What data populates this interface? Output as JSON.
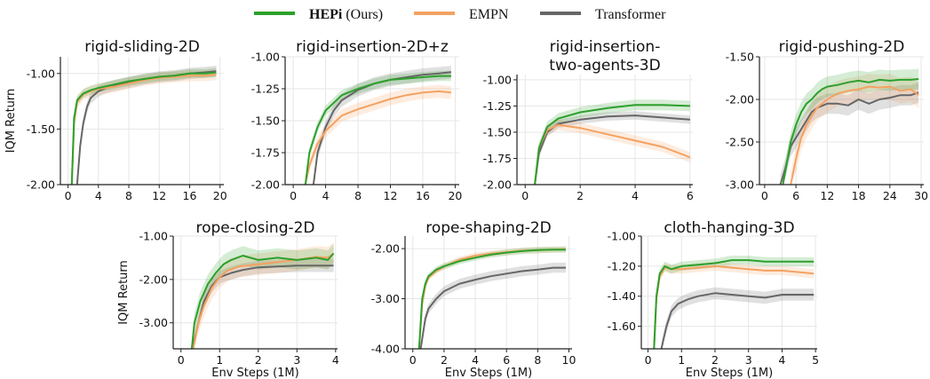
{
  "legend": {
    "items": [
      {
        "label": "HEPi",
        "suffix": " (Ours)",
        "color": "#2ca02c"
      },
      {
        "label": "EMPN",
        "suffix": "",
        "color": "#f4a261"
      },
      {
        "label": "Transformer",
        "suffix": "",
        "color": "#666666"
      }
    ]
  },
  "colors": {
    "hepi": "#2ca02c",
    "empn": "#f4a261",
    "transformer": "#666666",
    "grid": "#e6e6e6"
  },
  "chart_data": [
    {
      "type": "line",
      "title": "rigid-sliding-2D",
      "xlabel": "",
      "ylabel": "IQM Return",
      "xlim": [
        -1,
        20.5
      ],
      "ylim": [
        -2.0,
        -0.85
      ],
      "xticks": [
        0,
        4,
        8,
        12,
        16,
        20
      ],
      "xtick_labels": [
        "0",
        "4",
        "8",
        "12",
        "16",
        "20"
      ],
      "yticks": [
        -1.0,
        -1.5,
        -2.0
      ],
      "ytick_labels": [
        "-1.00",
        "-1.50",
        "-2.00"
      ],
      "series": [
        {
          "name": "HEPi",
          "key": "hepi",
          "x": [
            0.5,
            0.8,
            1.2,
            2,
            3,
            4,
            6,
            8,
            10,
            12,
            14,
            16,
            18,
            19.5
          ],
          "y": [
            -2.0,
            -1.4,
            -1.24,
            -1.18,
            -1.15,
            -1.13,
            -1.1,
            -1.07,
            -1.05,
            -1.03,
            -1.02,
            -1.0,
            -1.0,
            -0.99
          ],
          "band": 0.04
        },
        {
          "name": "EMPN",
          "key": "empn",
          "x": [
            0.5,
            0.8,
            1.2,
            2,
            3,
            4,
            6,
            8,
            10,
            12,
            14,
            16,
            18,
            19.5
          ],
          "y": [
            -2.0,
            -1.45,
            -1.26,
            -1.19,
            -1.16,
            -1.14,
            -1.12,
            -1.09,
            -1.06,
            -1.04,
            -1.03,
            -1.02,
            -1.02,
            -1.01
          ],
          "band": 0.05
        },
        {
          "name": "Transformer",
          "key": "transformer",
          "x": [
            1.2,
            1.6,
            2,
            2.5,
            3,
            4,
            5,
            6,
            8,
            10,
            12,
            14,
            16,
            18,
            19.5
          ],
          "y": [
            -2.0,
            -1.65,
            -1.45,
            -1.3,
            -1.22,
            -1.16,
            -1.13,
            -1.11,
            -1.08,
            -1.05,
            -1.03,
            -1.02,
            -1.0,
            -0.99,
            -0.98
          ],
          "band": 0.05
        }
      ]
    },
    {
      "type": "line",
      "title": "rigid-insertion-2D+z",
      "xlabel": "",
      "ylabel": "",
      "xlim": [
        -1,
        20.5
      ],
      "ylim": [
        -2.0,
        -1.0
      ],
      "xticks": [
        0,
        4,
        8,
        12,
        16,
        20
      ],
      "xtick_labels": [
        "0",
        "4",
        "8",
        "12",
        "16",
        "20"
      ],
      "yticks": [
        -1.0,
        -1.25,
        -1.5,
        -1.75,
        -2.0
      ],
      "ytick_labels": [
        "-1.00",
        "-1.25",
        "-1.50",
        "-1.75",
        "-2.00"
      ],
      "series": [
        {
          "name": "HEPi",
          "key": "hepi",
          "x": [
            1.5,
            2,
            3,
            4,
            5,
            6,
            8,
            10,
            12,
            14,
            16,
            18,
            19.5
          ],
          "y": [
            -2.0,
            -1.75,
            -1.55,
            -1.42,
            -1.36,
            -1.3,
            -1.25,
            -1.21,
            -1.18,
            -1.17,
            -1.16,
            -1.15,
            -1.15
          ],
          "band": 0.04
        },
        {
          "name": "EMPN",
          "key": "empn",
          "x": [
            1.5,
            2,
            3,
            4,
            5,
            6,
            8,
            10,
            12,
            14,
            16,
            18,
            19.5
          ],
          "y": [
            -2.0,
            -1.85,
            -1.68,
            -1.58,
            -1.52,
            -1.46,
            -1.41,
            -1.37,
            -1.33,
            -1.3,
            -1.28,
            -1.27,
            -1.28
          ],
          "band": 0.05
        },
        {
          "name": "Transformer",
          "key": "transformer",
          "x": [
            2.5,
            3,
            4,
            5,
            6,
            8,
            10,
            12,
            14,
            16,
            18,
            19.5
          ],
          "y": [
            -2.0,
            -1.75,
            -1.55,
            -1.42,
            -1.34,
            -1.26,
            -1.21,
            -1.18,
            -1.16,
            -1.14,
            -1.13,
            -1.12
          ],
          "band": 0.05
        }
      ]
    },
    {
      "type": "line",
      "title": "rigid-insertion-\ntwo-agents-3D",
      "xlabel": "",
      "ylabel": "",
      "xlim": [
        -0.3,
        6.1
      ],
      "ylim": [
        -2.0,
        -0.95
      ],
      "xticks": [
        0,
        2,
        4,
        6
      ],
      "xtick_labels": [
        "0",
        "2",
        "4",
        "6"
      ],
      "yticks": [
        -1.0,
        -1.25,
        -1.5,
        -1.75,
        -2.0
      ],
      "ytick_labels": [
        "-1.00",
        "-1.25",
        "-1.50",
        "-1.75",
        "-2.00"
      ],
      "series": [
        {
          "name": "HEPi",
          "key": "hepi",
          "x": [
            0.35,
            0.5,
            0.8,
            1.2,
            2,
            3,
            4,
            5,
            6
          ],
          "y": [
            -2.0,
            -1.65,
            -1.45,
            -1.37,
            -1.31,
            -1.27,
            -1.24,
            -1.24,
            -1.25
          ],
          "band": 0.05
        },
        {
          "name": "EMPN",
          "key": "empn",
          "x": [
            0.35,
            0.5,
            0.8,
            1.2,
            2,
            3,
            4,
            5,
            6
          ],
          "y": [
            -2.0,
            -1.65,
            -1.48,
            -1.43,
            -1.46,
            -1.52,
            -1.58,
            -1.64,
            -1.74
          ],
          "band": 0.05
        },
        {
          "name": "Transformer",
          "key": "transformer",
          "x": [
            0.35,
            0.5,
            0.8,
            1.2,
            2,
            3,
            4,
            5,
            6
          ],
          "y": [
            -2.0,
            -1.7,
            -1.5,
            -1.42,
            -1.38,
            -1.35,
            -1.34,
            -1.36,
            -1.38
          ],
          "band": 0.04
        }
      ]
    },
    {
      "type": "line",
      "title": "rigid-pushing-2D",
      "xlabel": "",
      "ylabel": "",
      "xlim": [
        -1,
        30.5
      ],
      "ylim": [
        -3.0,
        -1.5
      ],
      "xticks": [
        0,
        6,
        12,
        18,
        24,
        30
      ],
      "xtick_labels": [
        "0",
        "6",
        "12",
        "18",
        "24",
        "30"
      ],
      "yticks": [
        -1.5,
        -2.0,
        -2.5,
        -3.0
      ],
      "ytick_labels": [
        "-1.50",
        "-2.00",
        "-2.50",
        "-3.00"
      ],
      "series": [
        {
          "name": "HEPi",
          "key": "hepi",
          "x": [
            3.5,
            5,
            6,
            7,
            8,
            9,
            10,
            11,
            12,
            14,
            16,
            18,
            20,
            22,
            24,
            26,
            28,
            29.5
          ],
          "y": [
            -3.0,
            -2.5,
            -2.3,
            -2.15,
            -2.05,
            -2.0,
            -1.93,
            -1.88,
            -1.85,
            -1.83,
            -1.8,
            -1.78,
            -1.8,
            -1.77,
            -1.78,
            -1.77,
            -1.77,
            -1.76
          ],
          "band": 0.12
        },
        {
          "name": "EMPN",
          "key": "empn",
          "x": [
            5,
            6,
            7,
            8,
            9,
            10,
            12,
            14,
            16,
            18,
            20,
            22,
            24,
            26,
            28,
            29.5
          ],
          "y": [
            -3.0,
            -2.7,
            -2.45,
            -2.3,
            -2.2,
            -2.1,
            -2.0,
            -1.93,
            -1.9,
            -1.88,
            -1.85,
            -1.86,
            -1.85,
            -1.9,
            -1.88,
            -1.95
          ],
          "band": 0.15
        },
        {
          "name": "Transformer",
          "key": "transformer",
          "x": [
            3,
            4,
            5,
            6,
            7,
            8,
            9,
            10,
            12,
            14,
            16,
            18,
            20,
            22,
            24,
            26,
            28,
            29.5
          ],
          "y": [
            -3.0,
            -2.8,
            -2.55,
            -2.45,
            -2.35,
            -2.25,
            -2.15,
            -2.1,
            -2.05,
            -2.05,
            -2.07,
            -2.0,
            -2.05,
            -2.0,
            -1.98,
            -1.95,
            -1.95,
            -1.92
          ],
          "band": 0.12
        }
      ]
    },
    {
      "type": "line",
      "title": "rope-closing-2D",
      "xlabel": "Env Steps (1M)",
      "ylabel": "IQM Return",
      "xlim": [
        -0.2,
        4.05
      ],
      "ylim": [
        -3.6,
        -1.0
      ],
      "xticks": [
        0,
        1,
        2,
        3,
        4
      ],
      "xtick_labels": [
        "0",
        "1",
        "2",
        "3",
        "4"
      ],
      "yticks": [
        -1.0,
        -2.0,
        -3.0
      ],
      "ytick_labels": [
        "-1.00",
        "-2.00",
        "-3.00"
      ],
      "series": [
        {
          "name": "HEPi",
          "key": "hepi",
          "x": [
            0.28,
            0.35,
            0.5,
            0.7,
            0.9,
            1.1,
            1.3,
            1.6,
            2,
            2.5,
            3,
            3.5,
            3.8,
            3.95
          ],
          "y": [
            -3.6,
            -3.0,
            -2.5,
            -2.1,
            -1.85,
            -1.65,
            -1.55,
            -1.45,
            -1.55,
            -1.5,
            -1.55,
            -1.5,
            -1.55,
            -1.4
          ],
          "band": 0.22
        },
        {
          "name": "EMPN",
          "key": "empn",
          "x": [
            0.32,
            0.45,
            0.6,
            0.8,
            1,
            1.2,
            1.5,
            2,
            2.5,
            3,
            3.5,
            3.8,
            3.95
          ],
          "y": [
            -3.6,
            -3.0,
            -2.6,
            -2.2,
            -1.95,
            -1.8,
            -1.7,
            -1.65,
            -1.6,
            -1.55,
            -1.48,
            -1.5,
            -1.4
          ],
          "band": 0.25
        },
        {
          "name": "Transformer",
          "key": "transformer",
          "x": [
            0.3,
            0.45,
            0.6,
            0.8,
            1,
            1.3,
            1.6,
            2,
            2.5,
            3,
            3.5,
            3.95
          ],
          "y": [
            -3.6,
            -3.0,
            -2.5,
            -2.15,
            -1.95,
            -1.85,
            -1.78,
            -1.72,
            -1.7,
            -1.68,
            -1.68,
            -1.68
          ],
          "band": 0.15
        }
      ]
    },
    {
      "type": "line",
      "title": "rope-shaping-2D",
      "xlabel": "Env Steps (1M)",
      "ylabel": "",
      "xlim": [
        -0.5,
        10.2
      ],
      "ylim": [
        -4.0,
        -1.75
      ],
      "xticks": [
        0,
        2,
        4,
        6,
        8,
        10
      ],
      "xtick_labels": [
        "0",
        "2",
        "4",
        "6",
        "8",
        "10"
      ],
      "yticks": [
        -2.0,
        -3.0,
        -4.0
      ],
      "ytick_labels": [
        "-2.00",
        "-3.00",
        "-4.00"
      ],
      "series": [
        {
          "name": "HEPi",
          "key": "hepi",
          "x": [
            0.4,
            0.6,
            0.8,
            1,
            1.5,
            2,
            3,
            4,
            5,
            6,
            7,
            8,
            9,
            9.8
          ],
          "y": [
            -4.0,
            -3.0,
            -2.7,
            -2.55,
            -2.42,
            -2.35,
            -2.25,
            -2.18,
            -2.12,
            -2.08,
            -2.05,
            -2.03,
            -2.02,
            -2.02
          ],
          "band": 0.06
        },
        {
          "name": "EMPN",
          "key": "empn",
          "x": [
            0.4,
            0.6,
            0.8,
            1,
            1.5,
            2,
            3,
            4,
            5,
            6,
            7,
            8,
            9,
            9.8
          ],
          "y": [
            -4.0,
            -3.1,
            -2.75,
            -2.58,
            -2.45,
            -2.36,
            -2.22,
            -2.14,
            -2.1,
            -2.07,
            -2.04,
            -2.03,
            -2.02,
            -2.01
          ],
          "band": 0.06
        },
        {
          "name": "Transformer",
          "key": "transformer",
          "x": [
            0.5,
            0.8,
            1,
            1.5,
            2,
            3,
            4,
            5,
            6,
            7,
            8,
            9,
            9.8
          ],
          "y": [
            -4.0,
            -3.4,
            -3.2,
            -3.0,
            -2.85,
            -2.7,
            -2.62,
            -2.55,
            -2.5,
            -2.45,
            -2.42,
            -2.38,
            -2.38
          ],
          "band": 0.1
        }
      ]
    },
    {
      "type": "line",
      "title": "cloth-hanging-3D",
      "xlabel": "Env Steps (1M)",
      "ylabel": "",
      "xlim": [
        -0.2,
        5.05
      ],
      "ylim": [
        -1.75,
        -1.0
      ],
      "xticks": [
        0,
        1,
        2,
        3,
        4,
        5
      ],
      "xtick_labels": [
        "0",
        "1",
        "2",
        "3",
        "4",
        "5"
      ],
      "yticks": [
        -1.0,
        -1.2,
        -1.4,
        -1.6
      ],
      "ytick_labels": [
        "-1.00",
        "-1.20",
        "-1.40",
        "-1.60"
      ],
      "series": [
        {
          "name": "HEPi",
          "key": "hepi",
          "x": [
            0.18,
            0.25,
            0.35,
            0.5,
            0.7,
            1,
            1.5,
            2,
            2.5,
            3,
            3.5,
            4,
            4.5,
            4.95
          ],
          "y": [
            -1.75,
            -1.4,
            -1.25,
            -1.2,
            -1.22,
            -1.2,
            -1.19,
            -1.18,
            -1.16,
            -1.16,
            -1.17,
            -1.17,
            -1.17,
            -1.17
          ],
          "band": 0.03
        },
        {
          "name": "EMPN",
          "key": "empn",
          "x": [
            0.18,
            0.25,
            0.35,
            0.5,
            0.7,
            1,
            1.5,
            2,
            2.5,
            3,
            3.5,
            4,
            4.5,
            4.95
          ],
          "y": [
            -1.75,
            -1.42,
            -1.27,
            -1.21,
            -1.22,
            -1.22,
            -1.21,
            -1.2,
            -1.21,
            -1.22,
            -1.23,
            -1.23,
            -1.24,
            -1.25
          ],
          "band": 0.03
        },
        {
          "name": "Transformer",
          "key": "transformer",
          "x": [
            0.4,
            0.55,
            0.7,
            0.9,
            1.2,
            1.5,
            2,
            2.5,
            3,
            3.5,
            4,
            4.5,
            4.95
          ],
          "y": [
            -1.75,
            -1.6,
            -1.5,
            -1.45,
            -1.42,
            -1.4,
            -1.38,
            -1.39,
            -1.4,
            -1.41,
            -1.39,
            -1.39,
            -1.39
          ],
          "band": 0.04
        }
      ]
    }
  ]
}
